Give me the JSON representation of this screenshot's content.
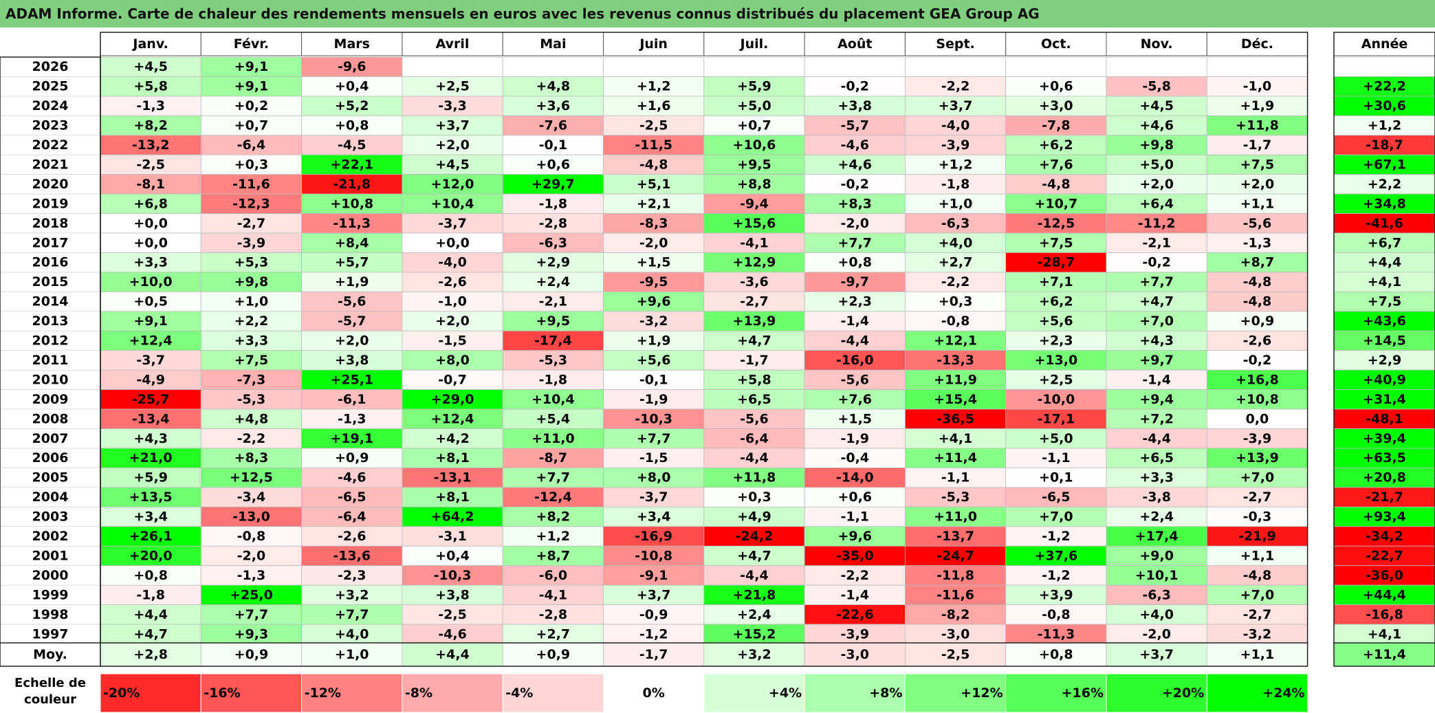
{
  "title": "ADAM Informe. Carte de chaleur des rendements mensuels en euros avec les revenus connus distribués du placement GEA Group AG",
  "headers": {
    "months": [
      "Janv.",
      "Févr.",
      "Mars",
      "Avril",
      "Mai",
      "Juin",
      "Juil.",
      "Août",
      "Sept.",
      "Oct.",
      "Nov.",
      "Déc."
    ],
    "year": "Année"
  },
  "average_label": "Moy.",
  "scale_label": "Echelle de couleur",
  "colors": {
    "negative": "#ff0000",
    "zero": "#ffffff",
    "positive": "#00ff00",
    "title_bg": "#7fcf7f"
  },
  "chart_data": {
    "type": "heatmap",
    "rows": [
      {
        "year": "2026",
        "m": [
          "+4,5",
          "+9,1",
          "-9,6",
          "",
          "",
          "",
          "",
          "",
          "",
          "",
          "",
          ""
        ],
        "y": ""
      },
      {
        "year": "2025",
        "m": [
          "+5,8",
          "+9,1",
          "+0,4",
          "+2,5",
          "+4,8",
          "+1,2",
          "+5,9",
          "-0,2",
          "-2,2",
          "+0,6",
          "-5,8",
          "-1,0"
        ],
        "y": "+22,2"
      },
      {
        "year": "2024",
        "m": [
          "-1,3",
          "+0,2",
          "+5,2",
          "-3,3",
          "+3,6",
          "+1,6",
          "+5,0",
          "+3,8",
          "+3,7",
          "+3,0",
          "+4,5",
          "+1,9"
        ],
        "y": "+30,6"
      },
      {
        "year": "2023",
        "m": [
          "+8,2",
          "+0,7",
          "+0,8",
          "+3,7",
          "-7,6",
          "-2,5",
          "+0,7",
          "-5,7",
          "-4,0",
          "-7,8",
          "+4,6",
          "+11,8"
        ],
        "y": "+1,2"
      },
      {
        "year": "2022",
        "m": [
          "-13,2",
          "-6,4",
          "-4,5",
          "+2,0",
          "-0,1",
          "-11,5",
          "+10,6",
          "-4,6",
          "-3,9",
          "+6,2",
          "+9,8",
          "-1,7"
        ],
        "y": "-18,7"
      },
      {
        "year": "2021",
        "m": [
          "-2,5",
          "+0,3",
          "+22,1",
          "+4,5",
          "+0,6",
          "-4,8",
          "+9,5",
          "+4,6",
          "+1,2",
          "+7,6",
          "+5,0",
          "+7,5"
        ],
        "y": "+67,1"
      },
      {
        "year": "2020",
        "m": [
          "-8,1",
          "-11,6",
          "-21,8",
          "+12,0",
          "+29,7",
          "+5,1",
          "+8,8",
          "-0,2",
          "-1,8",
          "-4,8",
          "+2,0",
          "+2,0"
        ],
        "y": "+2,2"
      },
      {
        "year": "2019",
        "m": [
          "+6,8",
          "-12,3",
          "+10,8",
          "+10,4",
          "-1,8",
          "+2,1",
          "-9,4",
          "+8,3",
          "+1,0",
          "+10,7",
          "+6,4",
          "+1,1"
        ],
        "y": "+34,8"
      },
      {
        "year": "2018",
        "m": [
          "+0,0",
          "-2,7",
          "-11,3",
          "-3,7",
          "-2,8",
          "-8,3",
          "+15,6",
          "-2,0",
          "-6,3",
          "-12,5",
          "-11,2",
          "-5,6"
        ],
        "y": "-41,6"
      },
      {
        "year": "2017",
        "m": [
          "+0,0",
          "-3,9",
          "+8,4",
          "+0,0",
          "-6,3",
          "-2,0",
          "-4,1",
          "+7,7",
          "+4,0",
          "+7,5",
          "-2,1",
          "-1,3"
        ],
        "y": "+6,7"
      },
      {
        "year": "2016",
        "m": [
          "+3,3",
          "+5,3",
          "+5,7",
          "-4,0",
          "+2,9",
          "+1,5",
          "+12,9",
          "+0,8",
          "+2,7",
          "-28,7",
          "-0,2",
          "+8,7"
        ],
        "y": "+4,4"
      },
      {
        "year": "2015",
        "m": [
          "+10,0",
          "+9,8",
          "+1,9",
          "-2,6",
          "+2,4",
          "-9,5",
          "-3,6",
          "-9,7",
          "-2,2",
          "+7,1",
          "+7,7",
          "-4,8"
        ],
        "y": "+4,1"
      },
      {
        "year": "2014",
        "m": [
          "+0,5",
          "+1,0",
          "-5,6",
          "-1,0",
          "-2,1",
          "+9,6",
          "-2,7",
          "+2,3",
          "+0,3",
          "+6,2",
          "+4,7",
          "-4,8"
        ],
        "y": "+7,5"
      },
      {
        "year": "2013",
        "m": [
          "+9,1",
          "+2,2",
          "-5,7",
          "+2,0",
          "+9,5",
          "-3,2",
          "+13,9",
          "-1,4",
          "-0,8",
          "+5,6",
          "+7,0",
          "+0,9"
        ],
        "y": "+43,6"
      },
      {
        "year": "2012",
        "m": [
          "+12,4",
          "+3,3",
          "+2,0",
          "-1,5",
          "-17,4",
          "+1,9",
          "+4,7",
          "-4,4",
          "+12,1",
          "+2,3",
          "+4,3",
          "-2,6"
        ],
        "y": "+14,5"
      },
      {
        "year": "2011",
        "m": [
          "-3,7",
          "+7,5",
          "+3,8",
          "+8,0",
          "-5,3",
          "+5,6",
          "-1,7",
          "-16,0",
          "-13,3",
          "+13,0",
          "+9,7",
          "-0,2"
        ],
        "y": "+2,9"
      },
      {
        "year": "2010",
        "m": [
          "-4,9",
          "-7,3",
          "+25,1",
          "-0,7",
          "-1,8",
          "-0,1",
          "+5,8",
          "-5,6",
          "+11,9",
          "+2,5",
          "-1,4",
          "+16,8"
        ],
        "y": "+40,9"
      },
      {
        "year": "2009",
        "m": [
          "-25,7",
          "-5,3",
          "-6,1",
          "+29,0",
          "+10,4",
          "-1,9",
          "+6,5",
          "+7,6",
          "+15,4",
          "-10,0",
          "+9,4",
          "+10,8"
        ],
        "y": "+31,4"
      },
      {
        "year": "2008",
        "m": [
          "-13,4",
          "+4,8",
          "-1,3",
          "+12,4",
          "+5,4",
          "-10,3",
          "-5,6",
          "+1,5",
          "-36,5",
          "-17,1",
          "+7,2",
          "0,0"
        ],
        "y": "-48,1"
      },
      {
        "year": "2007",
        "m": [
          "+4,3",
          "-2,2",
          "+19,1",
          "+4,2",
          "+11,0",
          "+7,7",
          "-6,4",
          "-1,9",
          "+4,1",
          "+5,0",
          "-4,4",
          "-3,9"
        ],
        "y": "+39,4"
      },
      {
        "year": "2006",
        "m": [
          "+21,0",
          "+8,3",
          "+0,9",
          "+8,1",
          "-8,7",
          "-1,5",
          "-4,4",
          "-0,4",
          "+11,4",
          "-1,1",
          "+6,5",
          "+13,9"
        ],
        "y": "+63,5"
      },
      {
        "year": "2005",
        "m": [
          "+5,9",
          "+12,5",
          "-4,6",
          "-13,1",
          "+7,7",
          "+8,0",
          "+11,8",
          "-14,0",
          "-1,1",
          "+0,1",
          "+3,3",
          "+7,0"
        ],
        "y": "+20,8"
      },
      {
        "year": "2004",
        "m": [
          "+13,5",
          "-3,4",
          "-6,5",
          "+8,1",
          "-12,4",
          "-3,7",
          "+0,3",
          "+0,6",
          "-5,3",
          "-6,5",
          "-3,8",
          "-2,7"
        ],
        "y": "-21,7"
      },
      {
        "year": "2003",
        "m": [
          "+3,4",
          "-13,0",
          "-6,4",
          "+64,2",
          "+8,2",
          "+3,4",
          "+4,9",
          "-1,1",
          "+11,0",
          "+7,0",
          "+2,4",
          "-0,3"
        ],
        "y": "+93,4"
      },
      {
        "year": "2002",
        "m": [
          "+26,1",
          "-0,8",
          "-2,6",
          "-3,1",
          "+1,2",
          "-16,9",
          "-24,2",
          "+9,6",
          "-13,7",
          "-1,2",
          "+17,4",
          "-21,9"
        ],
        "y": "-34,2"
      },
      {
        "year": "2001",
        "m": [
          "+20,0",
          "-2,0",
          "-13,6",
          "+0,4",
          "+8,7",
          "-10,8",
          "+4,7",
          "-35,0",
          "-24,7",
          "+37,6",
          "+9,0",
          "+1,1"
        ],
        "y": "-22,7"
      },
      {
        "year": "2000",
        "m": [
          "+0,8",
          "-1,3",
          "-2,3",
          "-10,3",
          "-6,0",
          "-9,1",
          "-4,4",
          "-2,2",
          "-11,8",
          "-1,2",
          "+10,1",
          "-4,8"
        ],
        "y": "-36,0"
      },
      {
        "year": "1999",
        "m": [
          "-1,8",
          "+25,0",
          "+3,2",
          "+3,8",
          "-4,1",
          "+3,7",
          "+21,8",
          "-1,4",
          "-11,6",
          "+3,9",
          "-6,3",
          "+7,0"
        ],
        "y": "+44,4"
      },
      {
        "year": "1998",
        "m": [
          "+4,4",
          "+7,7",
          "+7,7",
          "-2,5",
          "-2,8",
          "-0,9",
          "+2,4",
          "-22,6",
          "-8,2",
          "-0,8",
          "+4,0",
          "-2,7"
        ],
        "y": "-16,8"
      },
      {
        "year": "1997",
        "m": [
          "+4,7",
          "+9,3",
          "+4,0",
          "-4,6",
          "+2,7",
          "-1,2",
          "+15,2",
          "-3,9",
          "-3,0",
          "-11,3",
          "-2,0",
          "-3,2"
        ],
        "y": "+4,1"
      }
    ],
    "average": {
      "m": [
        "+2,8",
        "+0,9",
        "+1,0",
        "+4,4",
        "+0,9",
        "-1,7",
        "+3,2",
        "-3,0",
        "-2,5",
        "+0,8",
        "+3,7",
        "+1,1"
      ],
      "y": "+11,4"
    },
    "scale": [
      "-20%",
      "-16%",
      "-12%",
      "-8%",
      "-4%",
      "0%",
      "+4%",
      "+8%",
      "+12%",
      "+16%",
      "+20%",
      "+24%"
    ],
    "scale_values": [
      -20,
      -16,
      -12,
      -8,
      -4,
      0,
      4,
      8,
      12,
      16,
      20,
      24
    ],
    "color_saturation_value": 24
  }
}
